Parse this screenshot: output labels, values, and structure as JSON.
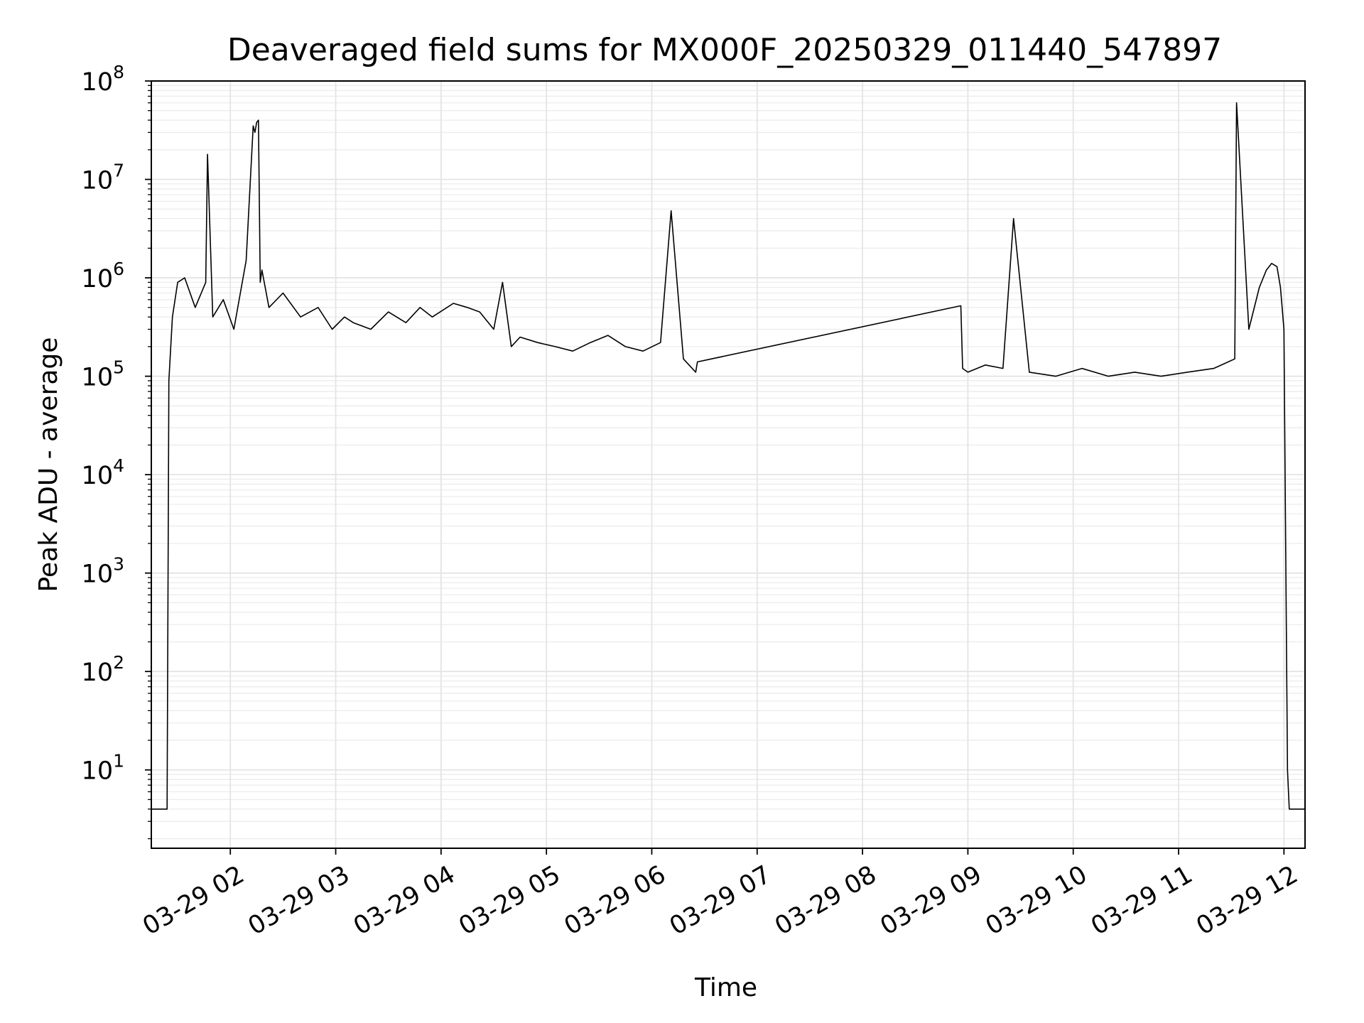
{
  "chart_data": {
    "type": "line",
    "title": "Deaveraged field sums for MX000F_20250329_011440_547897",
    "xlabel": "Time",
    "ylabel": "Peak ADU - average",
    "y_scale": "log",
    "ylim": [
      1.6,
      100000000
    ],
    "xlim": [
      "2025-03-29 01:15",
      "2025-03-29 12:12"
    ],
    "grid": "major and minor",
    "line_color": "#000000",
    "x_tick_labels": [
      "03-29 02",
      "03-29 03",
      "03-29 04",
      "03-29 05",
      "03-29 06",
      "03-29 07",
      "03-29 08",
      "03-29 09",
      "03-29 10",
      "03-29 11",
      "03-29 12"
    ],
    "x_ticks": [
      "2025-03-29 02:00",
      "2025-03-29 03:00",
      "2025-03-29 04:00",
      "2025-03-29 05:00",
      "2025-03-29 06:00",
      "2025-03-29 07:00",
      "2025-03-29 08:00",
      "2025-03-29 09:00",
      "2025-03-29 10:00",
      "2025-03-29 11:00",
      "2025-03-29 12:00"
    ],
    "y_ticks": [
      {
        "value": 10,
        "base": "10",
        "exp": "1"
      },
      {
        "value": 100,
        "base": "10",
        "exp": "2"
      },
      {
        "value": 1000,
        "base": "10",
        "exp": "3"
      },
      {
        "value": 10000,
        "base": "10",
        "exp": "4"
      },
      {
        "value": 100000,
        "base": "10",
        "exp": "5"
      },
      {
        "value": 1000000,
        "base": "10",
        "exp": "6"
      },
      {
        "value": 10000000,
        "base": "10",
        "exp": "7"
      },
      {
        "value": 100000000,
        "base": "10",
        "exp": "8"
      }
    ],
    "series": [
      {
        "x": [
          "2025-03-29 01:15",
          "2025-03-29 01:24",
          "2025-03-29 01:25",
          "2025-03-29 01:27",
          "2025-03-29 01:30",
          "2025-03-29 01:34",
          "2025-03-29 01:40",
          "2025-03-29 01:46",
          "2025-03-29 01:47",
          "2025-03-29 01:50",
          "2025-03-29 01:56",
          "2025-03-29 02:02",
          "2025-03-29 02:09",
          "2025-03-29 02:13",
          "2025-03-29 02:14",
          "2025-03-29 02:15",
          "2025-03-29 02:16",
          "2025-03-29 02:17",
          "2025-03-29 02:18",
          "2025-03-29 02:22",
          "2025-03-29 02:30",
          "2025-03-29 02:40",
          "2025-03-29 02:50",
          "2025-03-29 02:58",
          "2025-03-29 03:05",
          "2025-03-29 03:10",
          "2025-03-29 03:20",
          "2025-03-29 03:30",
          "2025-03-29 03:40",
          "2025-03-29 03:48",
          "2025-03-29 03:55",
          "2025-03-29 04:07",
          "2025-03-29 04:15",
          "2025-03-29 04:22",
          "2025-03-29 04:30",
          "2025-03-29 04:35",
          "2025-03-29 04:40",
          "2025-03-29 04:45",
          "2025-03-29 04:55",
          "2025-03-29 05:05",
          "2025-03-29 05:15",
          "2025-03-29 05:25",
          "2025-03-29 05:35",
          "2025-03-29 05:45",
          "2025-03-29 05:55",
          "2025-03-29 06:05",
          "2025-03-29 06:11",
          "2025-03-29 06:18",
          "2025-03-29 06:25",
          "2025-03-29 06:26",
          "2025-03-29 08:56",
          "2025-03-29 08:57",
          "2025-03-29 09:00",
          "2025-03-29 09:10",
          "2025-03-29 09:20",
          "2025-03-29 09:26",
          "2025-03-29 09:35",
          "2025-03-29 09:50",
          "2025-03-29 10:05",
          "2025-03-29 10:20",
          "2025-03-29 10:35",
          "2025-03-29 10:50",
          "2025-03-29 11:05",
          "2025-03-29 11:20",
          "2025-03-29 11:32",
          "2025-03-29 11:33",
          "2025-03-29 11:40",
          "2025-03-29 11:46",
          "2025-03-29 11:50",
          "2025-03-29 11:53",
          "2025-03-29 11:56",
          "2025-03-29 11:58",
          "2025-03-29 12:00",
          "2025-03-29 12:02",
          "2025-03-29 12:03",
          "2025-03-29 12:04",
          "2025-03-29 12:12"
        ],
        "y": [
          4,
          4,
          90000,
          400000,
          900000,
          1000000,
          500000,
          900000,
          18000000,
          400000,
          600000,
          300000,
          1500000,
          35000000,
          30000000,
          38000000,
          40000000,
          900000,
          1200000,
          500000,
          700000,
          400000,
          500000,
          300000,
          400000,
          350000,
          300000,
          450000,
          350000,
          500000,
          400000,
          550000,
          500000,
          450000,
          300000,
          900000,
          200000,
          250000,
          220000,
          200000,
          180000,
          220000,
          260000,
          200000,
          180000,
          220000,
          4800000,
          150000,
          110000,
          140000,
          520000,
          120000,
          110000,
          130000,
          120000,
          4000000,
          110000,
          100000,
          120000,
          100000,
          110000,
          100000,
          110000,
          120000,
          150000,
          60000000,
          300000,
          800000,
          1200000,
          1400000,
          1300000,
          800000,
          300000,
          10,
          4,
          4,
          4
        ]
      }
    ]
  }
}
